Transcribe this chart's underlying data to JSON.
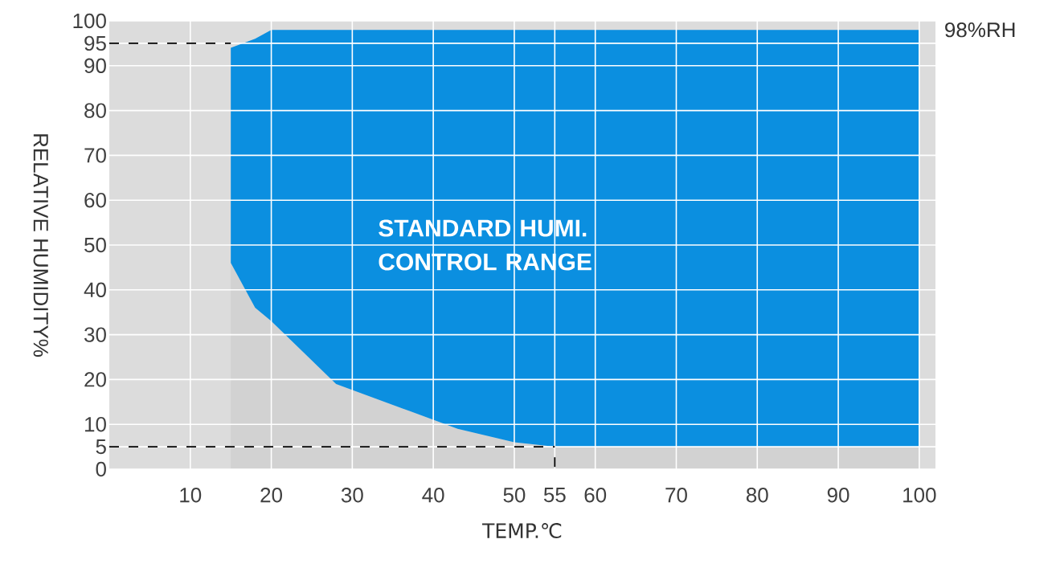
{
  "chart_data": {
    "type": "area",
    "xlabel": "TEMP.℃",
    "ylabel": "RELATIVE HUMIDITY%",
    "annotations": [
      {
        "text": "98%RH",
        "x": 100,
        "y": 98
      },
      "STANDARD HUMI. CONTROL RANGE"
    ],
    "xlim": [
      0,
      102
    ],
    "ylim": [
      0,
      100
    ],
    "xticks": [
      10,
      20,
      30,
      40,
      50,
      55,
      60,
      70,
      80,
      90,
      100
    ],
    "yticks": [
      0,
      5,
      10,
      20,
      30,
      40,
      50,
      60,
      70,
      80,
      90,
      95,
      100
    ],
    "grid": true,
    "stacked": true,
    "series": [
      {
        "color": "#d2d2d2",
        "x": [
          15,
          18,
          20,
          28,
          40,
          43,
          50,
          55,
          100
        ],
        "values": [
          46,
          36,
          33,
          19,
          11,
          9,
          6,
          5,
          5
        ]
      },
      {
        "color": "#0b8fe0",
        "x": [
          15,
          18,
          20,
          28,
          40,
          43,
          50,
          55,
          100
        ],
        "values": [
          48,
          60,
          65,
          79,
          87,
          89,
          92,
          93,
          93
        ]
      },
      {
        "type": "line",
        "color": "#000000",
        "line_style": "dashed",
        "x": [
          0,
          15
        ],
        "values": [
          95,
          95
        ]
      },
      {
        "type": "line",
        "color": "#000000",
        "line_style": "dashed",
        "x": [
          0,
          55
        ],
        "values": [
          5,
          5
        ]
      },
      {
        "type": "line",
        "color": "#000000",
        "line_style": "dashed",
        "x": [
          55,
          55
        ],
        "values": [
          0.5,
          3
        ]
      }
    ]
  }
}
